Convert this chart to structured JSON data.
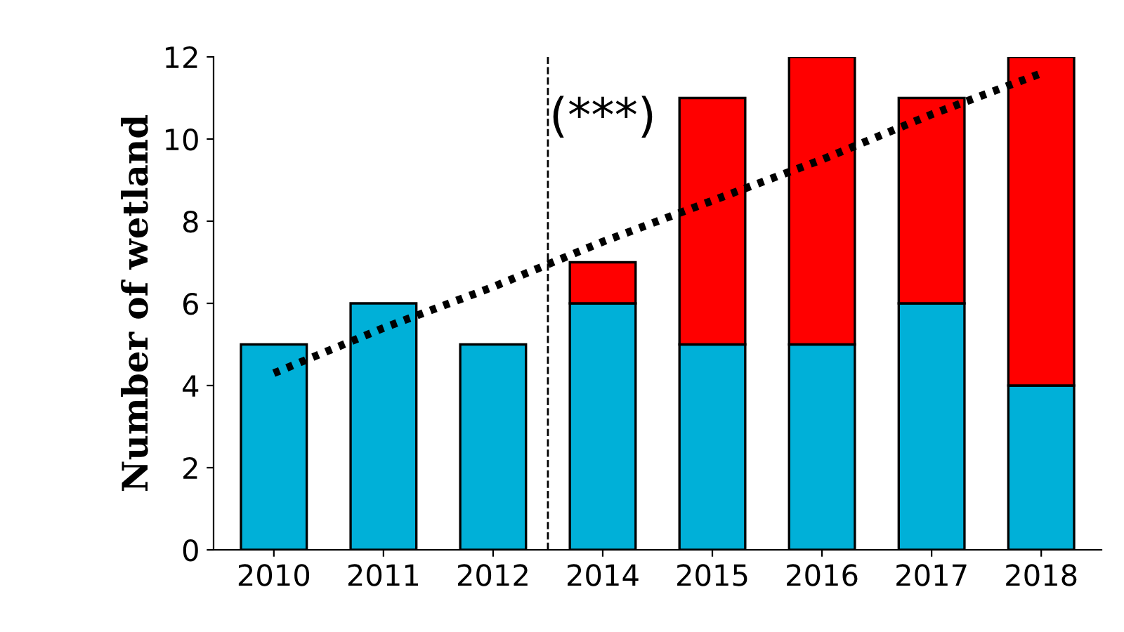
{
  "chart_data": {
    "type": "bar",
    "stacked": true,
    "ylabel": "Number of wetland",
    "categories": [
      "2010",
      "2011",
      "2012",
      "2014",
      "2015",
      "2016",
      "2017",
      "2018"
    ],
    "series": [
      {
        "color": "#00b0d8",
        "values": [
          5,
          6,
          5,
          6,
          5,
          5,
          6,
          4
        ]
      },
      {
        "color": "#ff0000",
        "values": [
          null,
          null,
          null,
          1,
          6,
          7,
          5,
          8
        ]
      },
      {
        "type": "line",
        "color": "#000000",
        "line_style": "dotted",
        "values": [
          4.3,
          5.4,
          6.4,
          7.5,
          8.5,
          9.5,
          10.6,
          11.6
        ]
      }
    ],
    "ylim": [
      0,
      12
    ],
    "yticks": [
      0,
      2,
      4,
      6,
      8,
      10,
      12
    ],
    "grid": false,
    "legend": false,
    "annotations": [
      "(***)"
    ]
  }
}
